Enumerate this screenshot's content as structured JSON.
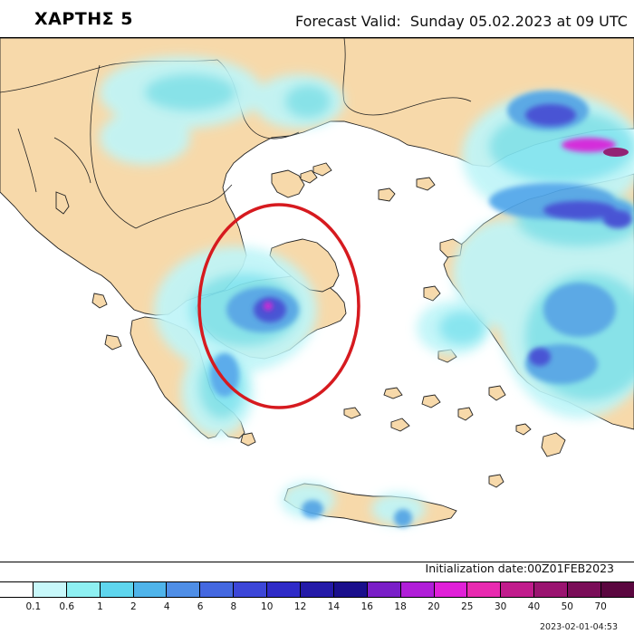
{
  "header": {
    "map_title": "ΧΑΡΤΗΣ 5",
    "forecast_valid": "Forecast Valid:  Sunday 05.02.2023 at 09 UTC"
  },
  "footer": {
    "initialization": "Initialization date:00Z01FEB2023",
    "timestamp": "2023-02-01-04:53"
  },
  "legend": {
    "labels": [
      "0.1",
      "0.6",
      "1",
      "2",
      "4",
      "6",
      "8",
      "10",
      "12",
      "14",
      "16",
      "18",
      "20",
      "25",
      "30",
      "40",
      "50",
      "70"
    ],
    "colors": [
      "#ffffff",
      "#c8f8fa",
      "#8ef0f2",
      "#5fd6ee",
      "#4fb4ea",
      "#4f8ee6",
      "#4468e0",
      "#3c46d8",
      "#2f2bc8",
      "#241aa8",
      "#1a0f8c",
      "#7a1fc8",
      "#b01ed8",
      "#e020d8",
      "#e82ab0",
      "#c01c8c",
      "#9a1470",
      "#7a0d58",
      "#5a063f"
    ]
  },
  "map": {
    "land_color": "#f7d9aa",
    "sea_color": "#ffffff",
    "highlight_circle_color": "#d61a1f"
  }
}
